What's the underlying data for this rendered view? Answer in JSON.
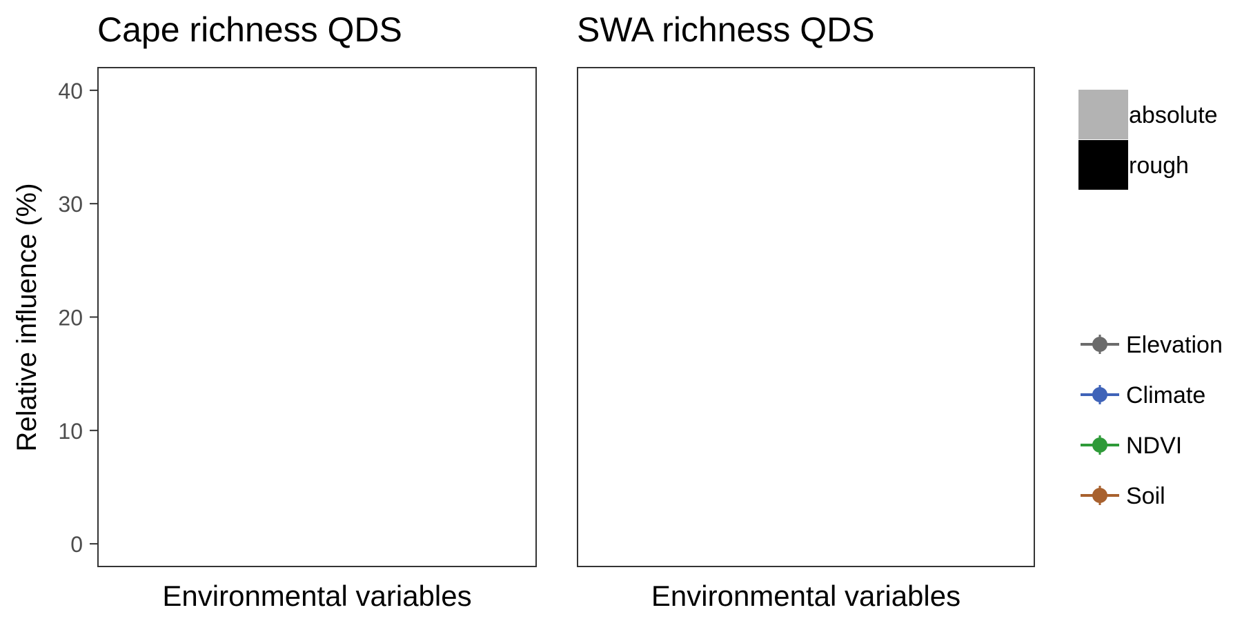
{
  "y_axis_label": "Relative influence (%)",
  "panels": [
    {
      "title": "Cape richness QDS",
      "xlabel": "Environmental variables"
    },
    {
      "title": "SWA richness QDS",
      "xlabel": "Environmental variables"
    }
  ],
  "legend": {
    "fill": [
      {
        "label": "absolute",
        "color": "#b3b3b3"
      },
      {
        "label": "rough",
        "color": "#000000"
      }
    ],
    "groups": [
      {
        "label": "Elevation",
        "color": "#6b6b6b"
      },
      {
        "label": "Climate",
        "color": "#3f63b8"
      },
      {
        "label": "NDVI",
        "color": "#2e9a38"
      },
      {
        "label": "Soil",
        "color": "#a8612e"
      }
    ]
  },
  "chart_data": [
    {
      "type": "bar",
      "title": "Cape richness QDS",
      "xlabel": "Environmental variables",
      "ylabel": "Relative influence (%)",
      "ylim": [
        -2,
        42
      ],
      "yticks": [
        0,
        10,
        20,
        30,
        40
      ],
      "categories": [],
      "series": [],
      "grid": false,
      "legend_position": "right"
    },
    {
      "type": "bar",
      "title": "SWA richness QDS",
      "xlabel": "Environmental variables",
      "ylabel": "",
      "ylim": [
        -2,
        42
      ],
      "categories": [],
      "series": [],
      "grid": false,
      "legend_position": "right"
    }
  ]
}
